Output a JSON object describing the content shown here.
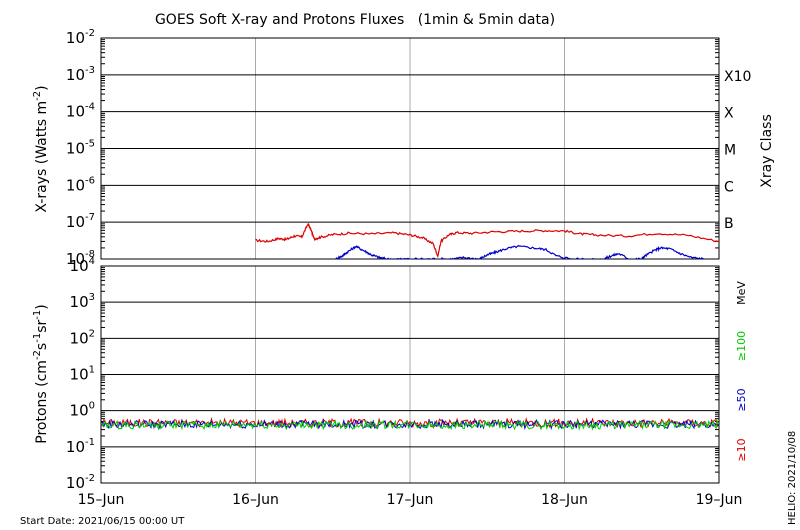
{
  "title": "GOES Soft X-ray and Protons Fluxes   (1min & 5min data)",
  "start_date": "Start Date: 2021/06/15 00:00 UT",
  "credit": "HELIO: 2021/10/08",
  "chart_data": [
    {
      "panel": "xray",
      "type": "line",
      "ylabel": "X-rays (Watts m",
      "ylabel_exponent": "-2",
      "ylabel_close": ")",
      "yscale": "log",
      "ylim_exp": [
        -8,
        -2
      ],
      "y_ticks": [
        {
          "base": "10",
          "exp": "-2",
          "e": -2
        },
        {
          "base": "10",
          "exp": "-3",
          "e": -3
        },
        {
          "base": "10",
          "exp": "-4",
          "e": -4
        },
        {
          "base": "10",
          "exp": "-5",
          "e": -5
        },
        {
          "base": "10",
          "exp": "-6",
          "e": -6
        },
        {
          "base": "10",
          "exp": "-7",
          "e": -7
        },
        {
          "base": "10",
          "exp": "-8",
          "e": -8
        }
      ],
      "right_axis_label": "Xray Class",
      "class_labels": [
        {
          "label": "X10",
          "e": -3
        },
        {
          "label": "X",
          "e": -4
        },
        {
          "label": "M",
          "e": -5
        },
        {
          "label": "C",
          "e": -6
        },
        {
          "label": "B",
          "e": -7
        }
      ],
      "series": [
        {
          "color": "#dd0000",
          "x": [
            1.0,
            1.08,
            1.15,
            1.2,
            1.25,
            1.3,
            1.34,
            1.36,
            1.38,
            1.42,
            1.5,
            1.6,
            1.75,
            1.9,
            2.0,
            2.08,
            2.15,
            2.18,
            2.2,
            2.25,
            2.3,
            2.4,
            2.55,
            2.7,
            2.85,
            3.0,
            3.1,
            3.2,
            3.4,
            3.6,
            3.8,
            4.0
          ],
          "y": [
            3.2e-08,
            3e-08,
            3.6e-08,
            3.4e-08,
            4.2e-08,
            4e-08,
            9e-08,
            6e-08,
            3.5e-08,
            3.9e-08,
            4.6e-08,
            5e-08,
            4.8e-08,
            5.1e-08,
            4.5e-08,
            3.8e-08,
            2.6e-08,
            1.2e-08,
            3e-08,
            4.5e-08,
            5.2e-08,
            5e-08,
            5.5e-08,
            5.7e-08,
            5.9e-08,
            5.8e-08,
            4.8e-08,
            4.5e-08,
            4.2e-08,
            5e-08,
            4.4e-08,
            3e-08
          ]
        },
        {
          "color": "#0000cc",
          "x": [
            1.52,
            1.56,
            1.6,
            1.65,
            1.7,
            1.75,
            1.8,
            1.85,
            1.95,
            2.1,
            2.2,
            2.28,
            2.35,
            2.45,
            2.5,
            2.55,
            2.62,
            2.7,
            2.8,
            2.88,
            2.95,
            3.05,
            3.25,
            3.3,
            3.35,
            3.42,
            3.5,
            3.52,
            3.58,
            3.62,
            3.68,
            3.75,
            3.82,
            3.9
          ],
          "y": [
            1e-08,
            1.2e-08,
            1.6e-08,
            2.2e-08,
            1.7e-08,
            1.3e-08,
            1.1e-08,
            1e-08,
            1e-08,
            1e-08,
            1e-08,
            1e-08,
            1.1e-08,
            1e-08,
            1.3e-08,
            1.5e-08,
            1.9e-08,
            2.2e-08,
            2e-08,
            1.8e-08,
            1.2e-08,
            1e-08,
            1e-08,
            1.2e-08,
            1.4e-08,
            1e-08,
            1e-08,
            1.2e-08,
            1.7e-08,
            2e-08,
            1.9e-08,
            1.4e-08,
            1.1e-08,
            1e-08
          ]
        }
      ]
    },
    {
      "panel": "protons",
      "type": "line",
      "ylabel": "Protons (cm",
      "ylabel_parts": [
        "-2",
        "s",
        "-1",
        "sr",
        "-1"
      ],
      "yscale": "log",
      "ylim_exp": [
        -2,
        4
      ],
      "y_ticks": [
        {
          "base": "10",
          "exp": "4",
          "e": 4
        },
        {
          "base": "10",
          "exp": "3",
          "e": 3
        },
        {
          "base": "10",
          "exp": "2",
          "e": 2
        },
        {
          "base": "10",
          "exp": "1",
          "e": 1
        },
        {
          "base": "10",
          "exp": "0",
          "e": 0
        },
        {
          "base": "10",
          "exp": "-1",
          "e": -1
        },
        {
          "base": "10",
          "exp": "-2",
          "e": -2
        }
      ],
      "threshold": 10,
      "right_labels": [
        {
          "text": "MeV",
          "color": "#000000"
        },
        {
          "text": "≥100",
          "color": "#00cc00"
        },
        {
          "text": "≥50",
          "color": "#0000cc"
        },
        {
          "text": "≥10",
          "color": "#dd0000"
        }
      ],
      "series": [
        {
          "name": "≥10",
          "color": "#dd0000",
          "level": 0.46
        },
        {
          "name": "≥50",
          "color": "#0000cc",
          "level": 0.42
        },
        {
          "name": "≥100",
          "color": "#00cc00",
          "level": 0.4
        }
      ]
    }
  ],
  "x_axis": {
    "xlim": [
      0,
      4
    ],
    "ticks": [
      {
        "label": "15–Jun",
        "x": 0
      },
      {
        "label": "16–Jun",
        "x": 1
      },
      {
        "label": "17–Jun",
        "x": 2
      },
      {
        "label": "18–Jun",
        "x": 3
      },
      {
        "label": "19–Jun",
        "x": 4
      }
    ]
  }
}
